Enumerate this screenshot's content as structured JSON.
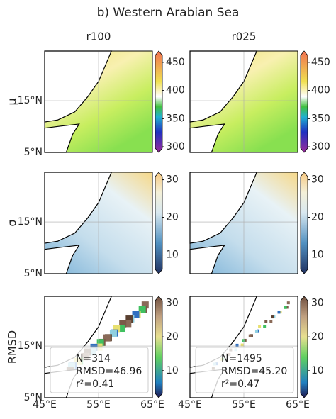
{
  "title": "b) Western Arabian Sea",
  "columns": [
    "r100",
    "r025"
  ],
  "lat_ticks": [
    "15°N",
    "5°N"
  ],
  "lon_ticks": [
    "45°E",
    "55°E",
    "65°E"
  ],
  "rows": [
    {
      "label": "μ",
      "colorbar": {
        "lim": [
          290,
          470
        ],
        "ticks": [
          300,
          350,
          400,
          450
        ]
      }
    },
    {
      "label": "σ",
      "colorbar": {
        "lim": [
          5,
          32
        ],
        "ticks": [
          10,
          20,
          30
        ]
      }
    },
    {
      "label": "RMSD",
      "colorbar": {
        "lim": [
          2,
          32
        ],
        "ticks": [
          10,
          20,
          30
        ]
      },
      "stats": [
        [
          "N=314",
          "RMSD=46.96",
          "r²=0.41"
        ],
        [
          "N=1495",
          "RMSD=45.20",
          "r²=0.47"
        ]
      ]
    }
  ]
}
